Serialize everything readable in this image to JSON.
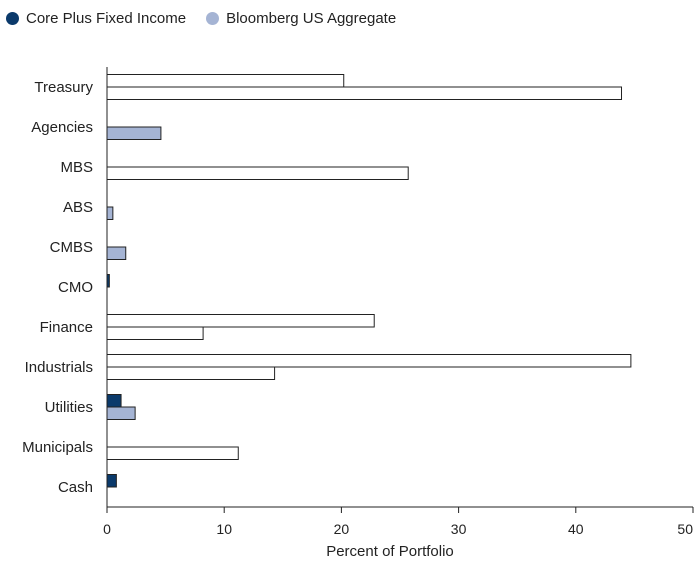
{
  "chart_data": {
    "type": "bar",
    "orientation": "horizontal",
    "title": "",
    "xlabel": "Percent of Portfolio",
    "ylabel": "",
    "xlim": [
      0,
      50
    ],
    "xticks": [
      0,
      10,
      20,
      30,
      40,
      50
    ],
    "grid": false,
    "legend_position": "top-left",
    "categories": [
      "Treasury",
      "Agencies",
      "MBS",
      "ABS",
      "CMBS",
      "CMO",
      "Finance",
      "Industrials",
      "Utilities",
      "Municipals",
      "Cash"
    ],
    "series": [
      {
        "name": "Core Plus Fixed Income",
        "color": "#0b3a6b",
        "values": [
          20.2,
          0,
          0,
          0,
          0,
          0.2,
          22.8,
          44.7,
          1.2,
          0,
          0.8
        ],
        "bar_colors": [
          "#ffffff",
          null,
          "#ffffff",
          null,
          null,
          "#0b3a6b",
          "#ffffff",
          "#ffffff",
          "#0b3a6b",
          "#ffffff",
          "#0b3a6b"
        ]
      },
      {
        "name": "Bloomberg US Aggregate",
        "color": "#a5b4d4",
        "values": [
          43.9,
          4.6,
          25.7,
          0.5,
          1.6,
          0,
          8.2,
          14.3,
          2.4,
          11.2,
          0
        ],
        "bar_colors": [
          "#ffffff",
          "#a5b4d4",
          "#ffffff",
          "#a5b4d4",
          "#a5b4d4",
          null,
          "#ffffff",
          "#ffffff",
          "#a5b4d4",
          "#ffffff",
          null
        ]
      }
    ]
  }
}
